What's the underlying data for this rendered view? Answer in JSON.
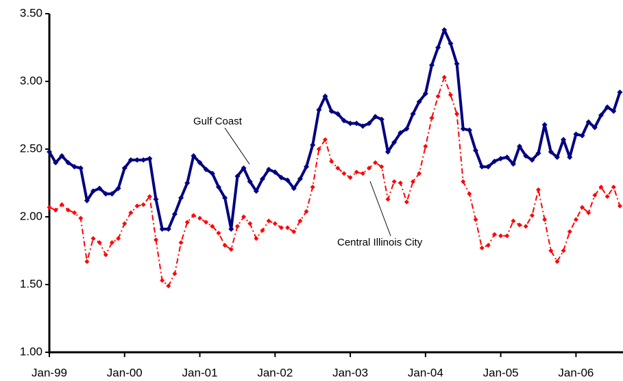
{
  "chart_data": {
    "type": "line",
    "x": [
      "1999-01",
      "1999-02",
      "1999-03",
      "1999-04",
      "1999-05",
      "1999-06",
      "1999-07",
      "1999-08",
      "1999-09",
      "1999-10",
      "1999-11",
      "1999-12",
      "2000-01",
      "2000-02",
      "2000-03",
      "2000-04",
      "2000-05",
      "2000-06",
      "2000-07",
      "2000-08",
      "2000-09",
      "2000-10",
      "2000-11",
      "2000-12",
      "2001-01",
      "2001-02",
      "2001-03",
      "2001-04",
      "2001-05",
      "2001-06",
      "2001-07",
      "2001-08",
      "2001-09",
      "2001-10",
      "2001-11",
      "2001-12",
      "2002-01",
      "2002-02",
      "2002-03",
      "2002-04",
      "2002-05",
      "2002-06",
      "2002-07",
      "2002-08",
      "2002-09",
      "2002-10",
      "2002-11",
      "2002-12",
      "2003-01",
      "2003-02",
      "2003-03",
      "2003-04",
      "2003-05",
      "2003-06",
      "2003-07",
      "2003-08",
      "2003-09",
      "2003-10",
      "2003-11",
      "2003-12",
      "2004-01",
      "2004-02",
      "2004-03",
      "2004-04",
      "2004-05",
      "2004-06",
      "2004-07",
      "2004-08",
      "2004-09",
      "2004-10",
      "2004-11",
      "2004-12",
      "2005-01",
      "2005-02",
      "2005-03",
      "2005-04",
      "2005-05",
      "2005-06",
      "2005-07",
      "2005-08",
      "2005-09",
      "2005-10",
      "2005-11",
      "2005-12",
      "2006-01",
      "2006-02",
      "2006-03",
      "2006-04",
      "2006-05",
      "2006-06",
      "2006-07",
      "2006-08"
    ],
    "series": [
      {
        "name": "Gulf Coast",
        "color": "#000080",
        "line_style": "solid",
        "values": [
          2.48,
          2.4,
          2.45,
          2.4,
          2.37,
          2.36,
          2.12,
          2.19,
          2.21,
          2.17,
          2.17,
          2.21,
          2.36,
          2.42,
          2.42,
          2.42,
          2.43,
          2.13,
          1.91,
          1.91,
          2.02,
          2.14,
          2.25,
          2.45,
          2.4,
          2.35,
          2.32,
          2.22,
          2.14,
          1.91,
          2.3,
          2.36,
          2.26,
          2.19,
          2.28,
          2.35,
          2.33,
          2.29,
          2.27,
          2.21,
          2.28,
          2.37,
          2.53,
          2.79,
          2.89,
          2.78,
          2.76,
          2.71,
          2.69,
          2.69,
          2.67,
          2.69,
          2.74,
          2.72,
          2.48,
          2.55,
          2.62,
          2.65,
          2.76,
          2.85,
          2.91,
          3.12,
          3.25,
          3.38,
          3.28,
          3.13,
          2.65,
          2.64,
          2.49,
          2.37,
          2.37,
          2.41,
          2.43,
          2.44,
          2.39,
          2.52,
          2.45,
          2.42,
          2.47,
          2.68,
          2.48,
          2.44,
          2.57,
          2.44,
          2.61,
          2.6,
          2.7,
          2.66,
          2.75,
          2.81,
          2.78,
          2.92
        ]
      },
      {
        "name": "Central Illinois City",
        "color": "#ff0000",
        "line_style": "dashdot",
        "values": [
          2.07,
          2.05,
          2.09,
          2.05,
          2.03,
          1.99,
          1.67,
          1.84,
          1.81,
          1.72,
          1.81,
          1.84,
          1.95,
          2.03,
          2.08,
          2.09,
          2.15,
          1.83,
          1.53,
          1.49,
          1.58,
          1.81,
          1.96,
          2.01,
          1.99,
          1.96,
          1.93,
          1.88,
          1.79,
          1.76,
          1.93,
          2.0,
          1.95,
          1.84,
          1.9,
          1.97,
          1.95,
          1.92,
          1.92,
          1.89,
          1.97,
          2.04,
          2.22,
          2.5,
          2.57,
          2.41,
          2.36,
          2.32,
          2.29,
          2.33,
          2.32,
          2.36,
          2.4,
          2.37,
          2.13,
          2.26,
          2.25,
          2.11,
          2.26,
          2.32,
          2.52,
          2.73,
          2.89,
          3.03,
          2.9,
          2.76,
          2.26,
          2.17,
          1.98,
          1.77,
          1.79,
          1.87,
          1.86,
          1.86,
          1.97,
          1.94,
          1.93,
          2.01,
          2.2,
          1.98,
          1.75,
          1.67,
          1.75,
          1.89,
          1.98,
          2.07,
          2.03,
          2.16,
          2.22,
          2.15,
          2.22,
          2.08
        ]
      }
    ],
    "xlim": [
      "1999-01",
      "2006-08"
    ],
    "xticks": [
      {
        "value": "1999-01",
        "label": "Jan-99"
      },
      {
        "value": "2000-01",
        "label": "Jan-00"
      },
      {
        "value": "2001-01",
        "label": "Jan-01"
      },
      {
        "value": "2002-01",
        "label": "Jan-02"
      },
      {
        "value": "2003-01",
        "label": "Jan-03"
      },
      {
        "value": "2004-01",
        "label": "Jan-04"
      },
      {
        "value": "2005-01",
        "label": "Jan-05"
      },
      {
        "value": "2006-01",
        "label": "Jan-06"
      }
    ],
    "ylim": [
      1.0,
      3.5
    ],
    "yticks": [
      {
        "value": 1.0,
        "label": "1.00"
      },
      {
        "value": 1.5,
        "label": "1.50"
      },
      {
        "value": 2.0,
        "label": "2.00"
      },
      {
        "value": 2.5,
        "label": "2.50"
      },
      {
        "value": 3.0,
        "label": "3.00"
      },
      {
        "value": 3.5,
        "label": "3.50"
      }
    ],
    "annotations": [
      {
        "text": "Gulf Coast"
      },
      {
        "text": "Central Illinois City"
      }
    ]
  }
}
